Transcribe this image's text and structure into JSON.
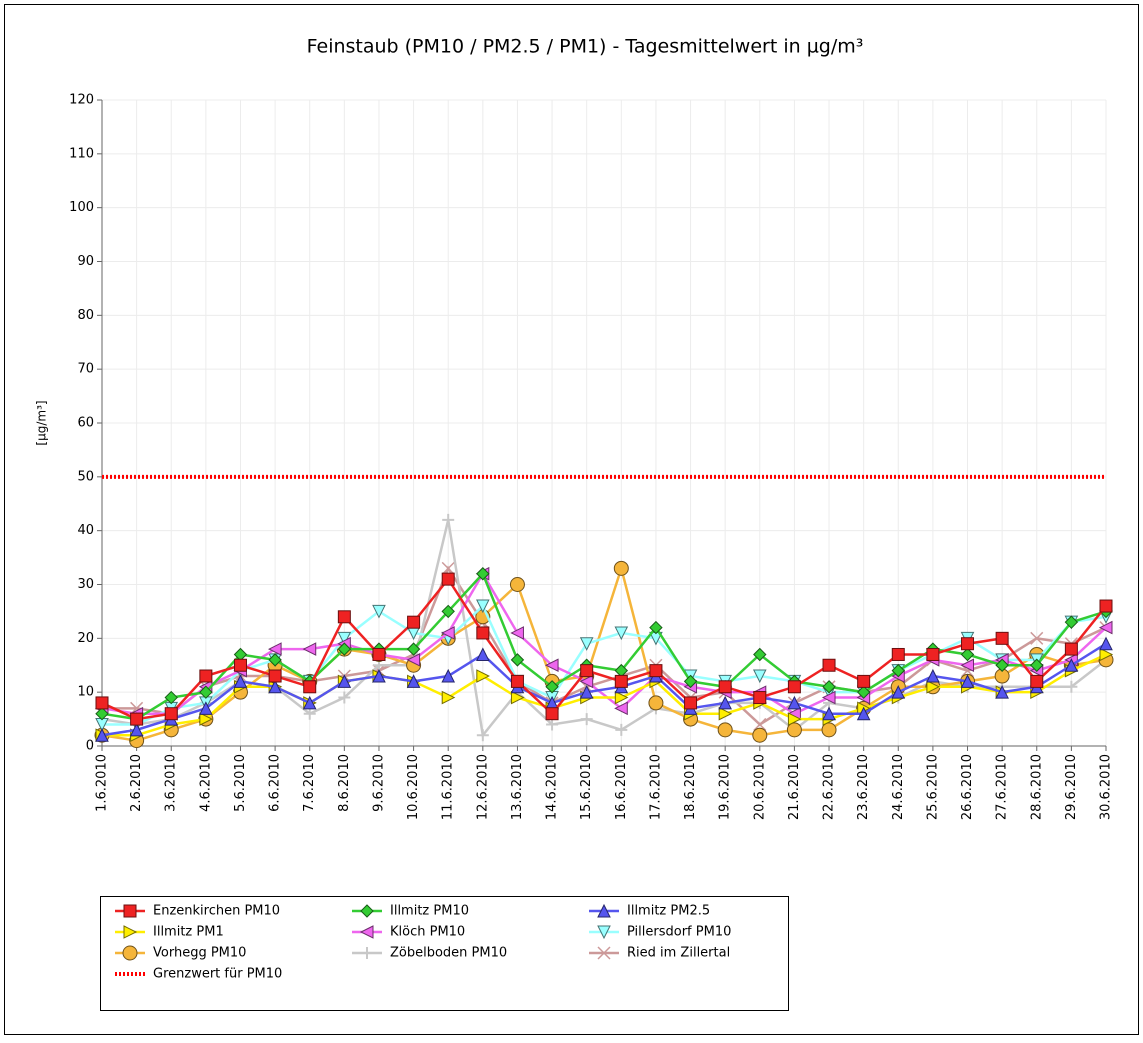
{
  "chart_data": {
    "type": "line",
    "title": "Feinstaub (PM10 / PM2.5 / PM1) -  Tagesmittelwert in µg/m³",
    "y_label": "[µg/m³]",
    "categories": [
      "1.6.2010",
      "2.6.2010",
      "3.6.2010",
      "4.6.2010",
      "5.6.2010",
      "6.6.2010",
      "7.6.2010",
      "8.6.2010",
      "9.6.2010",
      "10.6.2010",
      "11.6.2010",
      "12.6.2010",
      "13.6.2010",
      "14.6.2010",
      "15.6.2010",
      "16.6.2010",
      "17.6.2010",
      "18.6.2010",
      "19.6.2010",
      "20.6.2010",
      "21.6.2010",
      "22.6.2010",
      "23.6.2010",
      "24.6.2010",
      "25.6.2010",
      "26.6.2010",
      "27.6.2010",
      "28.6.2010",
      "29.6.2010",
      "30.6.2010"
    ],
    "ylim": [
      0,
      120
    ],
    "yticks": [
      0,
      10,
      20,
      30,
      40,
      50,
      60,
      70,
      80,
      90,
      100,
      110,
      120
    ],
    "grid": true,
    "series": [
      {
        "name": "Enzenkirchen PM10",
        "color": "#ee2222",
        "marker": "square",
        "values": [
          8,
          5,
          6,
          13,
          15,
          13,
          11,
          24,
          17,
          23,
          31,
          21,
          12,
          6,
          14,
          12,
          14,
          8,
          11,
          9,
          11,
          15,
          12,
          17,
          17,
          19,
          20,
          12,
          18,
          26
        ]
      },
      {
        "name": "Illmitz PM10",
        "color": "#33cc33",
        "marker": "diamond",
        "values": [
          6,
          5,
          9,
          10,
          17,
          16,
          12,
          18,
          18,
          18,
          25,
          32,
          16,
          11,
          15,
          14,
          22,
          12,
          11,
          17,
          12,
          11,
          10,
          14,
          18,
          17,
          15,
          15,
          23,
          25
        ]
      },
      {
        "name": "Illmitz PM2.5",
        "color": "#5555ee",
        "marker": "triangle-up",
        "values": [
          2,
          3,
          5,
          7,
          12,
          11,
          8,
          12,
          13,
          12,
          13,
          17,
          11,
          8,
          10,
          11,
          13,
          7,
          8,
          9,
          8,
          6,
          6,
          10,
          13,
          12,
          10,
          11,
          15,
          19
        ]
      },
      {
        "name": "Illmitz PM1",
        "color": "#ffee00",
        "marker": "triangle-right",
        "values": [
          2,
          2,
          4,
          5,
          11,
          11,
          8,
          12,
          13,
          12,
          9,
          13,
          9,
          7,
          9,
          9,
          12,
          6,
          6,
          8,
          5,
          5,
          7,
          9,
          11,
          11,
          10,
          10,
          14,
          17
        ]
      },
      {
        "name": "Klöch PM10",
        "color": "#ee66ee",
        "marker": "triangle-left",
        "values": [
          7,
          6,
          6,
          11,
          14,
          18,
          18,
          19,
          17,
          16,
          21,
          32,
          21,
          15,
          12,
          7,
          13,
          11,
          10,
          10,
          6,
          9,
          9,
          13,
          16,
          15,
          16,
          14,
          16,
          22
        ]
      },
      {
        "name": "Pillersdorf PM10",
        "color": "#99ffff",
        "marker": "triangle-down",
        "values": [
          4,
          4,
          7,
          8,
          14,
          16,
          12,
          20,
          25,
          21,
          20,
          26,
          12,
          9,
          19,
          21,
          20,
          13,
          12,
          13,
          12,
          10,
          10,
          14,
          17,
          20,
          16,
          16,
          23,
          24
        ]
      },
      {
        "name": "Vorhegg PM10",
        "color": "#f5b53a",
        "marker": "circle",
        "values": [
          2,
          1,
          3,
          5,
          10,
          15,
          12,
          18,
          17,
          15,
          20,
          24,
          30,
          12,
          13,
          33,
          8,
          5,
          3,
          2,
          3,
          3,
          7,
          11,
          11,
          12,
          13,
          17,
          15,
          16
        ]
      },
      {
        "name": "Zöbelboden PM10",
        "color": "#c8c8c8",
        "marker": "plus",
        "values": [
          5,
          4,
          5,
          8,
          12,
          11,
          6,
          9,
          15,
          15,
          42,
          2,
          10,
          4,
          5,
          3,
          7,
          6,
          8,
          8,
          3,
          8,
          7,
          9,
          12,
          11,
          11,
          11,
          11,
          16
        ]
      },
      {
        "name": "Ried im Zillertal",
        "color": "#cc9999",
        "marker": "cross",
        "values": [
          7,
          7,
          6,
          11,
          13,
          13,
          12,
          13,
          14,
          17,
          33,
          23,
          12,
          8,
          11,
          13,
          15,
          9,
          10,
          4,
          8,
          11,
          10,
          11,
          16,
          14,
          16,
          20,
          19,
          22
        ]
      },
      {
        "name": "Grenzwert für PM10",
        "color": "#ff0000",
        "marker": "dotted",
        "values": [
          50,
          50,
          50,
          50,
          50,
          50,
          50,
          50,
          50,
          50,
          50,
          50,
          50,
          50,
          50,
          50,
          50,
          50,
          50,
          50,
          50,
          50,
          50,
          50,
          50,
          50,
          50,
          50,
          50,
          50
        ]
      }
    ]
  }
}
